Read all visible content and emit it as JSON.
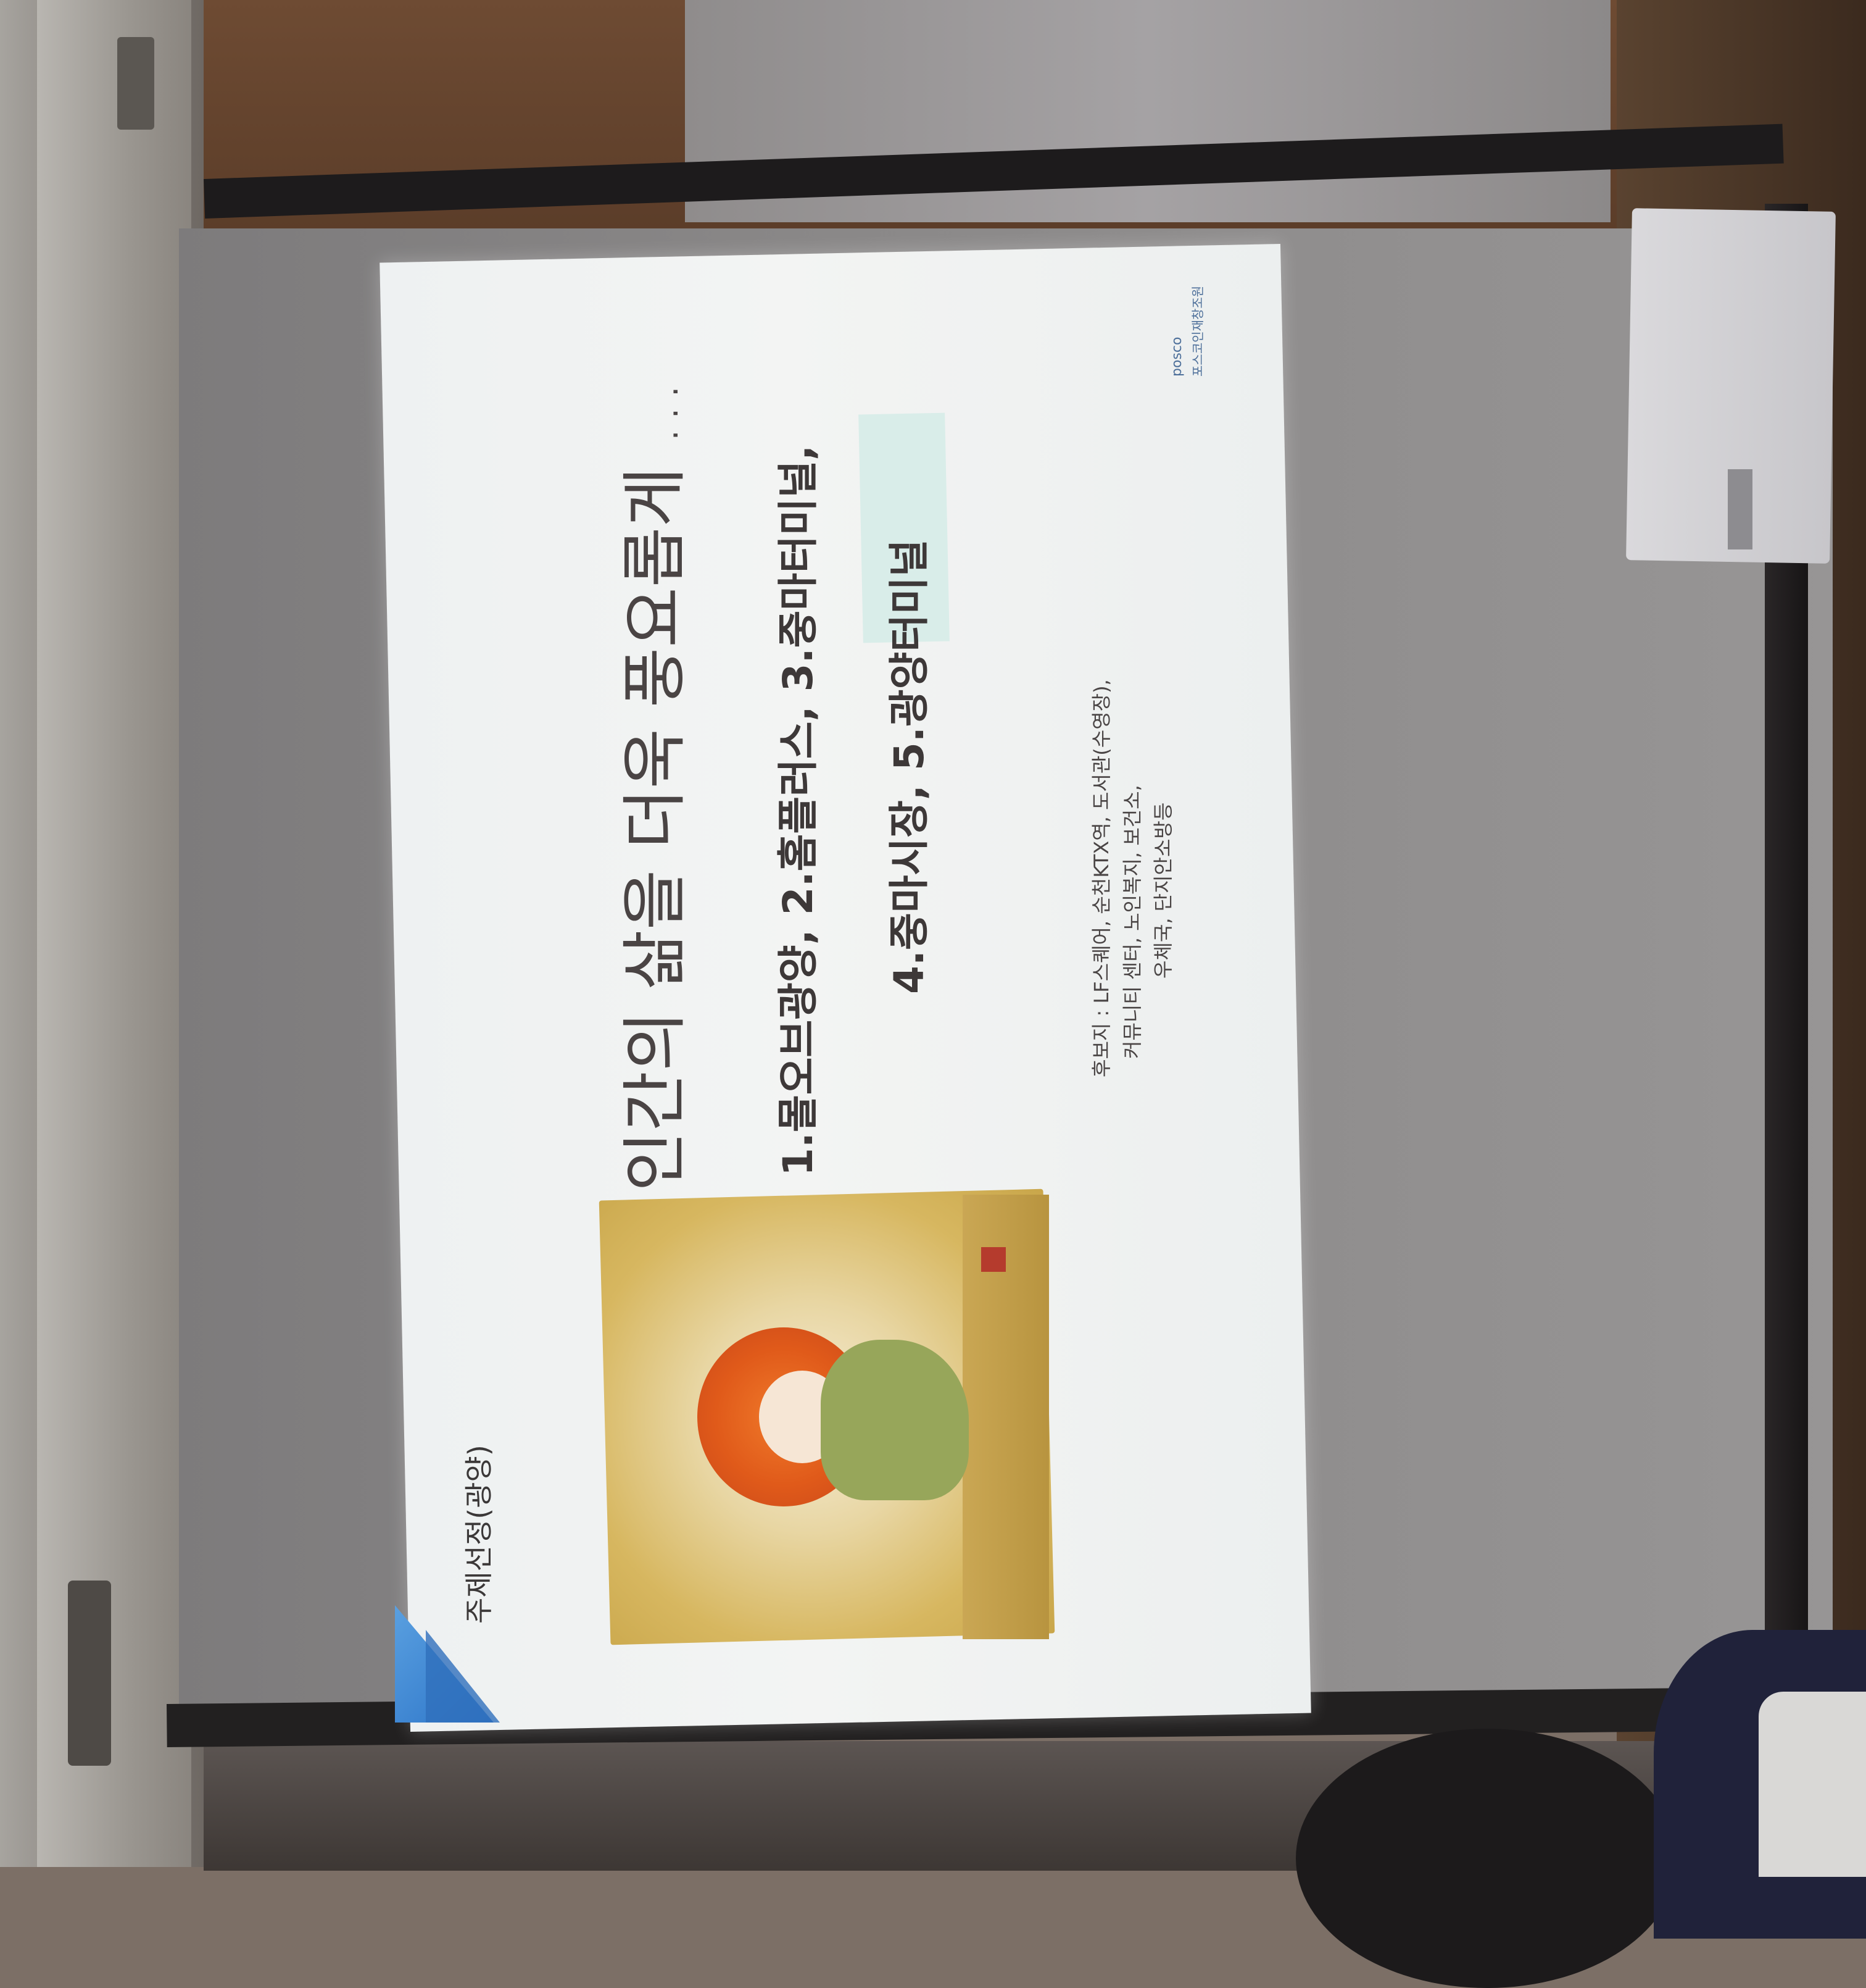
{
  "slide": {
    "section_label": "주제선정(광양)",
    "title": "인간의 삶을 더욱 풍요롭게 …",
    "options_line1": "1.몰오브광양,  2.홈플러스, 3.중마터미널,",
    "options_line2": "4.중마시장, 5.광양터미널",
    "candidates_line1": "후보지 : LF스퀘어, 순천KTX역, 도서관(수영장),",
    "candidates_line2": "커뮤니티 센터, 노인복지, 보건소,",
    "candidates_line3": "우체국, 단지안소방등",
    "logo_brand": "posco",
    "logo_subtitle": "포스코인재창조원"
  },
  "colors": {
    "slide_background": "#f1f3f3",
    "accent_blue": "#2c74c8",
    "highlight_box": "#d9ede9",
    "illustration_gold": "#d7b760",
    "hair_orange": "#e05a1a"
  }
}
